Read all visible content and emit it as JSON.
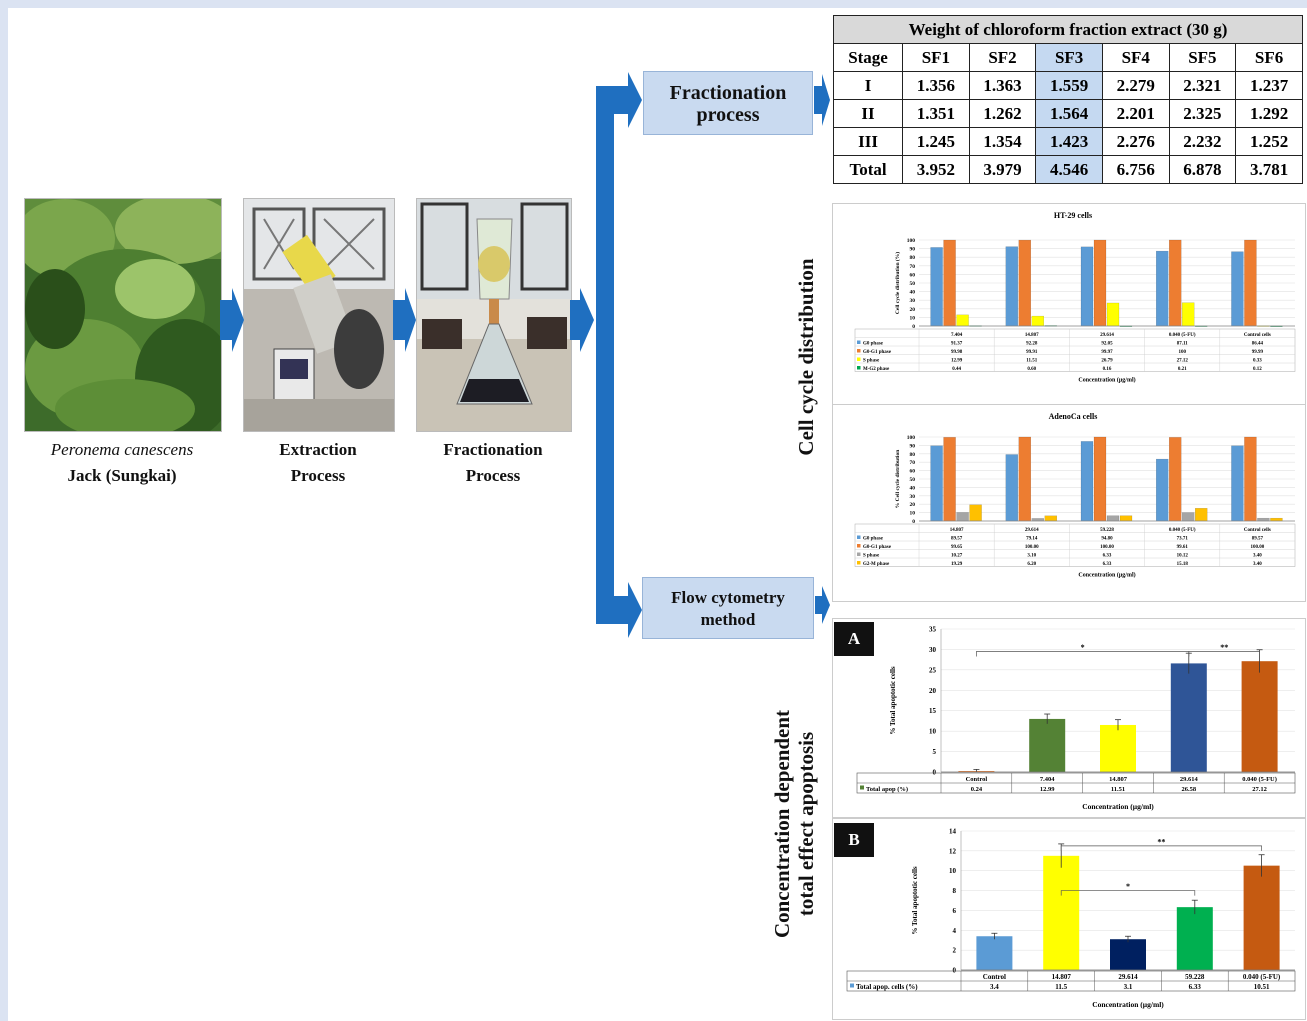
{
  "images": {
    "plant": {
      "name": "Peronema canescens",
      "name2": "Jack (Sungkai)"
    },
    "extraction": {
      "label1": "Extraction",
      "label2": "Process"
    },
    "fractionation": {
      "label1": "Fractionation",
      "label2": "Process"
    }
  },
  "boxes": {
    "fractionation_process": [
      "Fractionation",
      "process"
    ],
    "flow_cytometry": [
      "Flow cytometry",
      "method"
    ]
  },
  "side_labels": {
    "cell_cycle": "Cell cycle distribution",
    "apoptosis_line1": "Concentration dependent",
    "apoptosis_line2": "total effect apoptosis"
  },
  "weight_table": {
    "title": "Weight of chloroform fraction extract (30 g)",
    "headers": [
      "Stage",
      "SF1",
      "SF2",
      "SF3",
      "SF4",
      "SF5",
      "SF6"
    ],
    "rows": [
      [
        "I",
        "1.356",
        "1.363",
        "1.559",
        "2.279",
        "2.321",
        "1.237"
      ],
      [
        "II",
        "1.351",
        "1.262",
        "1.564",
        "2.201",
        "2.325",
        "1.292"
      ],
      [
        "III",
        "1.245",
        "1.354",
        "1.423",
        "2.276",
        "2.232",
        "1.252"
      ],
      [
        "Total",
        "3.952",
        "3.979",
        "4.546",
        "6.756",
        "6.878",
        "3.781"
      ]
    ],
    "highlight_col": 3
  },
  "colors": {
    "blue": "#5b9bd5",
    "orange": "#ed7d31",
    "yellow": "#ffff00",
    "green": "#70ad47",
    "gray": "#a5a5a5",
    "arrow": "#1f6fc0",
    "darkgreen": "#548235",
    "navy": "#2f5597",
    "rust": "#c55a11",
    "darknavy": "#002060",
    "brightgreen": "#00b050"
  },
  "chart_data": [
    {
      "type": "bar",
      "title": "HT-29 cells",
      "ylabel": "Cell cycle distribution (%)",
      "xlabel": "Concentration (µg/ml)",
      "ylim": [
        0,
        100
      ],
      "yticks": [
        0,
        10,
        20,
        30,
        40,
        50,
        60,
        70,
        80,
        90,
        100
      ],
      "categories": [
        "7.404",
        "14.807",
        "29.614",
        "0.040 (5-FU)",
        "Control cells"
      ],
      "series": [
        {
          "name": "G0 phase",
          "color": "#5b9bd5",
          "values": [
            91.37,
            92.28,
            92.05,
            87.11,
            86.44
          ],
          "labels": [
            "91.37",
            "92.28",
            "92.05",
            "87.11",
            "86.44"
          ]
        },
        {
          "name": "G0-G1 phase",
          "color": "#ed7d31",
          "values": [
            99.98,
            99.91,
            99.97,
            100,
            99.99
          ],
          "labels": [
            "99.98",
            "99.91",
            "99.97",
            "100",
            "99.99"
          ]
        },
        {
          "name": "S phase",
          "color": "#ffff00",
          "values": [
            12.99,
            11.51,
            26.79,
            27.12,
            0.33
          ],
          "labels": [
            "12.99",
            "11.51",
            "26.79",
            "27.12",
            "0.33"
          ]
        },
        {
          "name": "M-G2 phase",
          "color": "#00a651",
          "values": [
            0.44,
            0.6,
            0.16,
            0.21,
            0.12
          ],
          "labels": [
            "0.44",
            "0.60",
            "0.16",
            "0.21",
            "0.12"
          ]
        }
      ]
    },
    {
      "type": "bar",
      "title": "AdenoCa cells",
      "ylabel": "% Cell cycle distribution",
      "xlabel": "Concentration (µg/ml)",
      "ylim": [
        0,
        100
      ],
      "yticks": [
        0,
        10,
        20,
        30,
        40,
        50,
        60,
        70,
        80,
        90,
        100
      ],
      "categories": [
        "14.807",
        "29.614",
        "59.228",
        "0.040 (5-FU)",
        "Control cells"
      ],
      "series": [
        {
          "name": "G0 phase",
          "color": "#5b9bd5",
          "values": [
            89.57,
            79.14,
            94.8,
            73.71,
            89.57
          ],
          "labels": [
            "89.57",
            "79.14",
            "94.80",
            "73.71",
            "89.57"
          ]
        },
        {
          "name": "G0-G1 phase",
          "color": "#ed7d31",
          "values": [
            99.65,
            100.0,
            100.0,
            99.61,
            100.0
          ],
          "labels": [
            "99.65",
            "100.00",
            "100.00",
            "99.61",
            "100.00"
          ]
        },
        {
          "name": "S phase",
          "color": "#a5a5a5",
          "values": [
            10.27,
            3.1,
            6.33,
            10.12,
            3.4
          ],
          "labels": [
            "10.27",
            "3.10",
            "6.33",
            "10.12",
            "3.40"
          ]
        },
        {
          "name": "G2-M phase",
          "color": "#ffc000",
          "values": [
            19.29,
            6.2,
            6.33,
            15.18,
            3.4
          ],
          "labels": [
            "19.29",
            "6.20",
            "6.33",
            "15.18",
            "3.40"
          ]
        }
      ]
    },
    {
      "type": "bar",
      "panel": "A",
      "ylabel": "% Total apoptotic cells",
      "xlabel": "Concentration (µg/ml)",
      "ylim": [
        0,
        35
      ],
      "yticks": [
        0,
        5,
        10,
        15,
        20,
        25,
        30,
        35
      ],
      "categories": [
        "Control",
        "7.404",
        "14.807",
        "29.614",
        "0.040 (5-FU)"
      ],
      "series": [
        {
          "name": "Total apop (%)",
          "values": [
            0.24,
            12.99,
            11.51,
            26.58,
            27.12
          ],
          "labels": [
            "0.24",
            "12.99",
            "11.51",
            "26.58",
            "27.12"
          ]
        }
      ],
      "bar_colors": [
        "#ed7d31",
        "#548235",
        "#ffff00",
        "#2f5597",
        "#c55a11"
      ],
      "errors": [
        0.4,
        1.2,
        1.3,
        2.5,
        2.8
      ],
      "annotations": [
        {
          "text": "*",
          "from": 0,
          "to": 3,
          "level": 29.5
        },
        {
          "text": "**",
          "from": 3,
          "to": 4,
          "level": 29.5
        }
      ]
    },
    {
      "type": "bar",
      "panel": "B",
      "ylabel": "% Total apoptotic cells",
      "xlabel": "Concentration (µg/ml)",
      "ylim": [
        0,
        14
      ],
      "yticks": [
        0,
        2,
        4,
        6,
        8,
        10,
        12,
        14
      ],
      "categories": [
        "Control",
        "14.807",
        "29.614",
        "59.228",
        "0.040 (5-FU)"
      ],
      "series": [
        {
          "name": "Total apop. cells (%)",
          "values": [
            3.4,
            11.5,
            3.1,
            6.33,
            10.51
          ],
          "labels": [
            "3.4",
            "11.5",
            "3.1",
            "6.33",
            "10.51"
          ]
        }
      ],
      "bar_colors": [
        "#5b9bd5",
        "#ffff00",
        "#002060",
        "#00b050",
        "#c55a11"
      ],
      "errors": [
        0.3,
        1.2,
        0.3,
        0.7,
        1.1
      ],
      "annotations": [
        {
          "text": "**",
          "from": 1,
          "to": 4,
          "level": 12.5
        },
        {
          "text": "*",
          "from": 1,
          "to": 3,
          "level": 8.0
        }
      ]
    }
  ],
  "panel_tags": [
    "A",
    "B"
  ]
}
